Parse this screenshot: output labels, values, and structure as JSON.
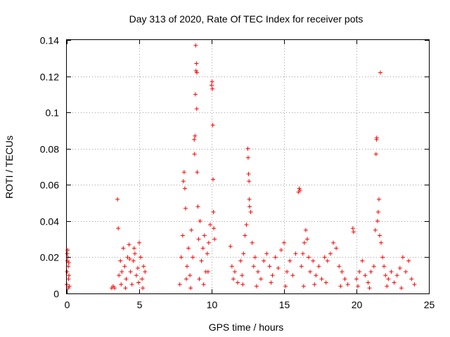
{
  "chart_data": {
    "type": "scatter",
    "title": "Day 313 of 2020, Rate Of TEC Index for receiver pots",
    "xlabel": "GPS time / hours",
    "ylabel": "ROTI / TECUs",
    "xlim": [
      0,
      25
    ],
    "ylim": [
      0,
      0.14
    ],
    "x_ticks": [
      0,
      5,
      10,
      15,
      20,
      25
    ],
    "y_ticks": [
      0,
      0.02,
      0.04,
      0.06,
      0.08,
      0.1,
      0.12,
      0.14
    ],
    "x_tick_labels": [
      "0",
      "5",
      "10",
      "15",
      "20",
      "25"
    ],
    "y_tick_labels": [
      "0",
      "0.02",
      "0.04",
      "0.06",
      "0.08",
      "0.1",
      "0.12",
      "0.14"
    ],
    "grid": true,
    "marker": "+",
    "marker_color": "#ff0000",
    "series": [
      {
        "name": "ROTI",
        "points": [
          [
            0.0,
            0.005
          ],
          [
            0.02,
            0.012
          ],
          [
            0.05,
            0.018
          ],
          [
            0.08,
            0.02
          ],
          [
            0.1,
            0.015
          ],
          [
            0.12,
            0.008
          ],
          [
            0.15,
            0.01
          ],
          [
            0.18,
            0.004
          ],
          [
            0.03,
            0.022
          ],
          [
            0.06,
            0.024
          ],
          [
            0.1,
            0.003
          ],
          [
            0.14,
            0.017
          ],
          [
            3.1,
            0.003
          ],
          [
            3.2,
            0.004
          ],
          [
            3.3,
            0.003
          ],
          [
            3.5,
            0.052
          ],
          [
            3.55,
            0.036
          ],
          [
            3.6,
            0.01
          ],
          [
            3.7,
            0.018
          ],
          [
            3.8,
            0.012
          ],
          [
            3.9,
            0.025
          ],
          [
            4.0,
            0.015
          ],
          [
            4.1,
            0.008
          ],
          [
            4.2,
            0.02
          ],
          [
            4.3,
            0.027
          ],
          [
            4.4,
            0.012
          ],
          [
            4.5,
            0.005
          ],
          [
            4.6,
            0.018
          ],
          [
            4.7,
            0.022
          ],
          [
            4.8,
            0.01
          ],
          [
            4.9,
            0.014
          ],
          [
            5.0,
            0.028
          ],
          [
            5.1,
            0.02
          ],
          [
            5.2,
            0.008
          ],
          [
            5.3,
            0.015
          ],
          [
            5.4,
            0.012
          ],
          [
            3.75,
            0.005
          ],
          [
            4.05,
            0.003
          ],
          [
            4.35,
            0.019
          ],
          [
            4.65,
            0.025
          ],
          [
            4.95,
            0.006
          ],
          [
            5.25,
            0.003
          ],
          [
            7.8,
            0.005
          ],
          [
            7.9,
            0.02
          ],
          [
            8.0,
            0.032
          ],
          [
            8.05,
            0.062
          ],
          [
            8.1,
            0.067
          ],
          [
            8.15,
            0.058
          ],
          [
            8.2,
            0.047
          ],
          [
            8.3,
            0.015
          ],
          [
            8.4,
            0.025
          ],
          [
            8.5,
            0.01
          ],
          [
            8.6,
            0.035
          ],
          [
            8.7,
            0.02
          ],
          [
            8.8,
            0.085
          ],
          [
            8.82,
            0.077
          ],
          [
            8.85,
            0.087
          ],
          [
            8.88,
            0.11
          ],
          [
            8.9,
            0.137
          ],
          [
            8.92,
            0.123
          ],
          [
            8.95,
            0.127
          ],
          [
            8.97,
            0.102
          ],
          [
            8.98,
            0.122
          ],
          [
            9.0,
            0.067
          ],
          [
            9.05,
            0.048
          ],
          [
            9.1,
            0.03
          ],
          [
            9.2,
            0.04
          ],
          [
            9.3,
            0.018
          ],
          [
            9.4,
            0.025
          ],
          [
            9.5,
            0.032
          ],
          [
            9.6,
            0.012
          ],
          [
            9.7,
            0.022
          ],
          [
            9.8,
            0.028
          ],
          [
            9.9,
            0.038
          ],
          [
            10.0,
            0.115
          ],
          [
            10.03,
            0.117
          ],
          [
            10.05,
            0.113
          ],
          [
            10.08,
            0.093
          ],
          [
            10.1,
            0.063
          ],
          [
            10.12,
            0.045
          ],
          [
            10.15,
            0.036
          ],
          [
            10.2,
            0.03
          ],
          [
            9.15,
            0.008
          ],
          [
            9.45,
            0.005
          ],
          [
            9.75,
            0.012
          ],
          [
            8.25,
            0.008
          ],
          [
            8.55,
            0.003
          ],
          [
            11.3,
            0.026
          ],
          [
            11.4,
            0.015
          ],
          [
            11.5,
            0.008
          ],
          [
            11.6,
            0.012
          ],
          [
            11.8,
            0.006
          ],
          [
            12.0,
            0.018
          ],
          [
            12.1,
            0.01
          ],
          [
            12.2,
            0.022
          ],
          [
            12.3,
            0.032
          ],
          [
            12.4,
            0.038
          ],
          [
            12.5,
            0.08
          ],
          [
            12.52,
            0.075
          ],
          [
            12.55,
            0.066
          ],
          [
            12.58,
            0.062
          ],
          [
            12.6,
            0.052
          ],
          [
            12.62,
            0.048
          ],
          [
            12.7,
            0.045
          ],
          [
            12.8,
            0.028
          ],
          [
            12.9,
            0.015
          ],
          [
            13.0,
            0.02
          ],
          [
            13.2,
            0.012
          ],
          [
            13.4,
            0.008
          ],
          [
            13.6,
            0.018
          ],
          [
            13.8,
            0.022
          ],
          [
            14.0,
            0.015
          ],
          [
            14.2,
            0.01
          ],
          [
            14.4,
            0.02
          ],
          [
            14.6,
            0.014
          ],
          [
            14.8,
            0.024
          ],
          [
            15.0,
            0.028
          ],
          [
            15.2,
            0.012
          ],
          [
            15.4,
            0.018
          ],
          [
            15.6,
            0.01
          ],
          [
            15.8,
            0.022
          ],
          [
            12.15,
            0.005
          ],
          [
            13.1,
            0.004
          ],
          [
            14.1,
            0.006
          ],
          [
            15.1,
            0.004
          ],
          [
            16.0,
            0.056
          ],
          [
            16.05,
            0.058
          ],
          [
            16.1,
            0.057
          ],
          [
            16.2,
            0.015
          ],
          [
            16.3,
            0.022
          ],
          [
            16.4,
            0.028
          ],
          [
            16.5,
            0.035
          ],
          [
            16.6,
            0.03
          ],
          [
            16.7,
            0.02
          ],
          [
            16.8,
            0.012
          ],
          [
            17.0,
            0.018
          ],
          [
            17.2,
            0.01
          ],
          [
            17.4,
            0.015
          ],
          [
            17.6,
            0.008
          ],
          [
            17.8,
            0.02
          ],
          [
            18.0,
            0.018
          ],
          [
            18.2,
            0.022
          ],
          [
            18.4,
            0.028
          ],
          [
            18.6,
            0.025
          ],
          [
            18.8,
            0.015
          ],
          [
            19.0,
            0.012
          ],
          [
            19.2,
            0.008
          ],
          [
            19.4,
            0.005
          ],
          [
            16.35,
            0.004
          ],
          [
            17.1,
            0.005
          ],
          [
            17.9,
            0.006
          ],
          [
            18.9,
            0.004
          ],
          [
            19.75,
            0.036
          ],
          [
            19.8,
            0.034
          ],
          [
            20.0,
            0.008
          ],
          [
            20.2,
            0.012
          ],
          [
            20.4,
            0.018
          ],
          [
            20.6,
            0.01
          ],
          [
            20.8,
            0.006
          ],
          [
            21.0,
            0.012
          ],
          [
            21.2,
            0.015
          ],
          [
            21.3,
            0.035
          ],
          [
            21.35,
            0.077
          ],
          [
            21.38,
            0.085
          ],
          [
            21.4,
            0.086
          ],
          [
            21.45,
            0.04
          ],
          [
            21.5,
            0.045
          ],
          [
            21.55,
            0.052
          ],
          [
            21.6,
            0.032
          ],
          [
            21.65,
            0.122
          ],
          [
            21.7,
            0.028
          ],
          [
            21.8,
            0.02
          ],
          [
            21.9,
            0.015
          ],
          [
            22.0,
            0.01
          ],
          [
            22.2,
            0.008
          ],
          [
            22.4,
            0.012
          ],
          [
            22.6,
            0.006
          ],
          [
            22.8,
            0.01
          ],
          [
            23.0,
            0.014
          ],
          [
            23.2,
            0.02
          ],
          [
            23.4,
            0.012
          ],
          [
            23.6,
            0.018
          ],
          [
            23.8,
            0.008
          ],
          [
            24.0,
            0.005
          ],
          [
            20.1,
            0.004
          ],
          [
            20.9,
            0.003
          ],
          [
            22.1,
            0.004
          ],
          [
            23.1,
            0.003
          ]
        ]
      }
    ]
  }
}
